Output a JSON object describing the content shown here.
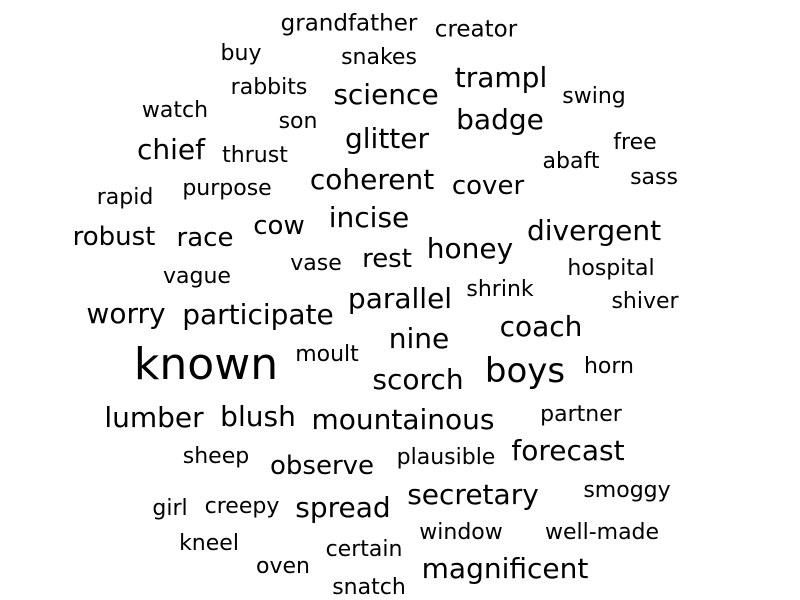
{
  "text_color": "#000000",
  "background_color": "#ffffff",
  "words": [
    {
      "text": "grandfather",
      "weight": 23
    },
    {
      "text": "creator",
      "weight": 23
    },
    {
      "text": "buy",
      "weight": 22
    },
    {
      "text": "snakes",
      "weight": 22
    },
    {
      "text": "trampl",
      "weight": 28
    },
    {
      "text": "rabbits",
      "weight": 22
    },
    {
      "text": "science",
      "weight": 28
    },
    {
      "text": "swing",
      "weight": 22
    },
    {
      "text": "watch",
      "weight": 22
    },
    {
      "text": "son",
      "weight": 22
    },
    {
      "text": "badge",
      "weight": 28
    },
    {
      "text": "chief",
      "weight": 28
    },
    {
      "text": "thrust",
      "weight": 22
    },
    {
      "text": "glitter",
      "weight": 28
    },
    {
      "text": "free",
      "weight": 22
    },
    {
      "text": "abaft",
      "weight": 22
    },
    {
      "text": "sass",
      "weight": 22
    },
    {
      "text": "rapid",
      "weight": 22
    },
    {
      "text": "purpose",
      "weight": 22
    },
    {
      "text": "coherent",
      "weight": 28
    },
    {
      "text": "cover",
      "weight": 26
    },
    {
      "text": "incise",
      "weight": 28
    },
    {
      "text": "cow",
      "weight": 26
    },
    {
      "text": "divergent",
      "weight": 28
    },
    {
      "text": "robust",
      "weight": 26
    },
    {
      "text": "race",
      "weight": 26
    },
    {
      "text": "honey",
      "weight": 28
    },
    {
      "text": "vase",
      "weight": 22
    },
    {
      "text": "rest",
      "weight": 26
    },
    {
      "text": "hospital",
      "weight": 22
    },
    {
      "text": "vague",
      "weight": 22
    },
    {
      "text": "shrink",
      "weight": 22
    },
    {
      "text": "parallel",
      "weight": 28
    },
    {
      "text": "shiver",
      "weight": 22
    },
    {
      "text": "worry",
      "weight": 28
    },
    {
      "text": "participate",
      "weight": 28
    },
    {
      "text": "coach",
      "weight": 28
    },
    {
      "text": "nine",
      "weight": 28
    },
    {
      "text": "known",
      "weight": 44
    },
    {
      "text": "moult",
      "weight": 22
    },
    {
      "text": "boys",
      "weight": 34
    },
    {
      "text": "horn",
      "weight": 22
    },
    {
      "text": "scorch",
      "weight": 28
    },
    {
      "text": "lumber",
      "weight": 28
    },
    {
      "text": "blush",
      "weight": 28
    },
    {
      "text": "mountainous",
      "weight": 28
    },
    {
      "text": "partner",
      "weight": 22
    },
    {
      "text": "forecast",
      "weight": 28
    },
    {
      "text": "sheep",
      "weight": 22
    },
    {
      "text": "observe",
      "weight": 26
    },
    {
      "text": "plausible",
      "weight": 22
    },
    {
      "text": "secretary",
      "weight": 28
    },
    {
      "text": "smoggy",
      "weight": 22
    },
    {
      "text": "girl",
      "weight": 22
    },
    {
      "text": "creepy",
      "weight": 22
    },
    {
      "text": "spread",
      "weight": 28
    },
    {
      "text": "window",
      "weight": 22
    },
    {
      "text": "well-made",
      "weight": 22
    },
    {
      "text": "kneel",
      "weight": 22
    },
    {
      "text": "certain",
      "weight": 22
    },
    {
      "text": "oven",
      "weight": 22
    },
    {
      "text": "magnificent",
      "weight": 28
    },
    {
      "text": "snatch",
      "weight": 22
    }
  ]
}
